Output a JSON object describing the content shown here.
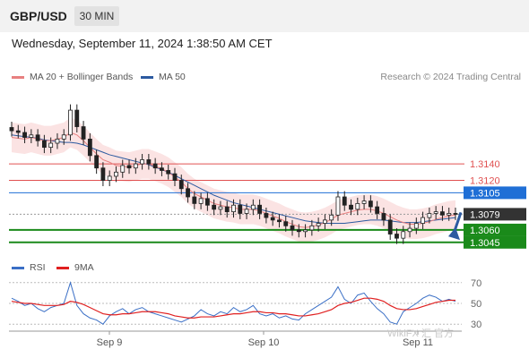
{
  "header": {
    "symbol": "GBP/USD",
    "timeframe": "30 MIN",
    "datetime": "Wednesday, September 11, 2024 1:38:50 AM CET",
    "credit": "Research © 2024 Trading Central"
  },
  "legend": {
    "ma20_label": "MA 20 + Bollinger Bands",
    "ma50_label": "MA 50",
    "rsi_label": "RSI",
    "ma9_label": "9MA"
  },
  "watermark": "WikiFX 汇 官方",
  "colors": {
    "bullish_candle": "#ffffff",
    "bearish_candle": "#222222",
    "ma20": "#e88080",
    "bollinger_fill": "#fbe3e3",
    "ma50": "#2c5aa0",
    "resistance": "#e05050",
    "pivot": "#1f6fd6",
    "support": "#1a8a1a",
    "current_price": "#333333",
    "rsi_line": "#3a6fc6",
    "rsi_ma": "#e02020",
    "arrow": "#2c5aa0"
  },
  "chart_data": [
    {
      "type": "candlestick",
      "symbol": "GBP/USD",
      "timeframe": "30 MIN",
      "x_ticks": [
        "Sep 9",
        "Sep 10",
        "Sep 11"
      ],
      "y_range": [
        1.3035,
        1.323
      ],
      "indicators": [
        "MA 20 + Bollinger Bands",
        "MA 50"
      ],
      "levels": [
        {
          "price": 1.314,
          "label": "1.3140",
          "role": "resistance",
          "style": "thin"
        },
        {
          "price": 1.312,
          "label": "1.3120",
          "role": "resistance",
          "style": "thin"
        },
        {
          "price": 1.3105,
          "label": "1.3105",
          "role": "pivot",
          "style": "line"
        },
        {
          "price": 1.3079,
          "label": "1.3079",
          "role": "current",
          "style": "dotted"
        },
        {
          "price": 1.306,
          "label": "1.3060",
          "role": "support",
          "style": "thick"
        },
        {
          "price": 1.3045,
          "label": "1.3045",
          "role": "support",
          "style": "thick"
        }
      ],
      "current_price": 1.3079,
      "close_series": [
        1.318,
        1.3178,
        1.3172,
        1.3175,
        1.3168,
        1.316,
        1.3165,
        1.317,
        1.3175,
        1.3205,
        1.3185,
        1.317,
        1.315,
        1.3135,
        1.312,
        1.3125,
        1.313,
        1.3138,
        1.3135,
        1.314,
        1.3145,
        1.314,
        1.3135,
        1.3132,
        1.3128,
        1.312,
        1.311,
        1.31,
        1.3092,
        1.3098,
        1.309,
        1.3085,
        1.3088,
        1.3082,
        1.309,
        1.308,
        1.3085,
        1.309,
        1.308,
        1.3075,
        1.3072,
        1.307,
        1.3065,
        1.306,
        1.3058,
        1.306,
        1.3065,
        1.3068,
        1.3072,
        1.3078,
        1.31,
        1.309,
        1.3085,
        1.3092,
        1.3095,
        1.3088,
        1.308,
        1.3072,
        1.3055,
        1.305,
        1.3058,
        1.3062,
        1.3068,
        1.3075,
        1.308,
        1.3082,
        1.3078,
        1.308,
        1.3079
      ],
      "ma20_series": [
        1.3172,
        1.3171,
        1.317,
        1.3172,
        1.317,
        1.3168,
        1.3168,
        1.317,
        1.3172,
        1.3178,
        1.3175,
        1.3168,
        1.316,
        1.3152,
        1.3145,
        1.3142,
        1.3138,
        1.3137,
        1.3136,
        1.3138,
        1.314,
        1.314,
        1.3137,
        1.3134,
        1.313,
        1.3124,
        1.3118,
        1.311,
        1.3104,
        1.31,
        1.3096,
        1.3092,
        1.309,
        1.3088,
        1.3087,
        1.3085,
        1.3085,
        1.3085,
        1.3083,
        1.308,
        1.3077,
        1.3074,
        1.307,
        1.3067,
        1.3064,
        1.3063,
        1.3064,
        1.3066,
        1.3069,
        1.3073,
        1.3078,
        1.308,
        1.3082,
        1.3084,
        1.3085,
        1.3085,
        1.3083,
        1.308,
        1.3076,
        1.3072,
        1.3069,
        1.3067,
        1.3067,
        1.3068,
        1.307,
        1.3073,
        1.3075,
        1.3077,
        1.3078
      ],
      "ma50_series": [
        1.3175,
        1.3174,
        1.3173,
        1.3172,
        1.3171,
        1.3169,
        1.3168,
        1.3167,
        1.3166,
        1.3166,
        1.3165,
        1.3163,
        1.316,
        1.3157,
        1.3154,
        1.3151,
        1.3149,
        1.3147,
        1.3145,
        1.3143,
        1.3141,
        1.3139,
        1.3136,
        1.3133,
        1.313,
        1.3126,
        1.3122,
        1.3118,
        1.3114,
        1.311,
        1.3106,
        1.3102,
        1.3099,
        1.3096,
        1.3093,
        1.3091,
        1.3089,
        1.3087,
        1.3085,
        1.3083,
        1.3081,
        1.3079,
        1.3077,
        1.3075,
        1.3073,
        1.3071,
        1.307,
        1.3069,
        1.3068,
        1.3068,
        1.3068,
        1.3068,
        1.3069,
        1.307,
        1.3071,
        1.3072,
        1.3072,
        1.3072,
        1.3071,
        1.307,
        1.3069,
        1.3069,
        1.3069,
        1.307,
        1.3071,
        1.3072,
        1.3073,
        1.3074,
        1.3075
      ],
      "bb_width": 0.0018,
      "forecast": {
        "from": 1.3079,
        "to": 1.305,
        "direction": "down"
      }
    },
    {
      "type": "line",
      "name": "RSI",
      "y_ticks": [
        70,
        50,
        30
      ],
      "y_range": [
        25,
        75
      ],
      "rsi_series": [
        55,
        52,
        48,
        50,
        45,
        42,
        46,
        48,
        50,
        70,
        48,
        40,
        36,
        34,
        30,
        38,
        42,
        45,
        40,
        44,
        46,
        42,
        40,
        38,
        36,
        34,
        32,
        35,
        38,
        44,
        40,
        38,
        42,
        40,
        46,
        42,
        44,
        48,
        40,
        38,
        40,
        36,
        38,
        35,
        34,
        40,
        44,
        48,
        52,
        56,
        66,
        54,
        50,
        58,
        60,
        52,
        45,
        40,
        32,
        30,
        42,
        46,
        50,
        55,
        58,
        56,
        52,
        54,
        52
      ],
      "ma9_series": [
        52,
        51,
        50,
        50,
        49,
        48,
        48,
        48,
        49,
        52,
        51,
        49,
        46,
        43,
        40,
        39,
        39,
        40,
        40,
        41,
        42,
        42,
        42,
        41,
        40,
        38,
        37,
        36,
        36,
        37,
        37,
        37,
        38,
        39,
        40,
        40,
        41,
        42,
        42,
        41,
        41,
        40,
        40,
        39,
        38,
        38,
        39,
        40,
        42,
        44,
        48,
        50,
        51,
        53,
        55,
        55,
        54,
        52,
        48,
        45,
        44,
        44,
        45,
        47,
        49,
        51,
        52,
        53,
        53
      ]
    }
  ]
}
